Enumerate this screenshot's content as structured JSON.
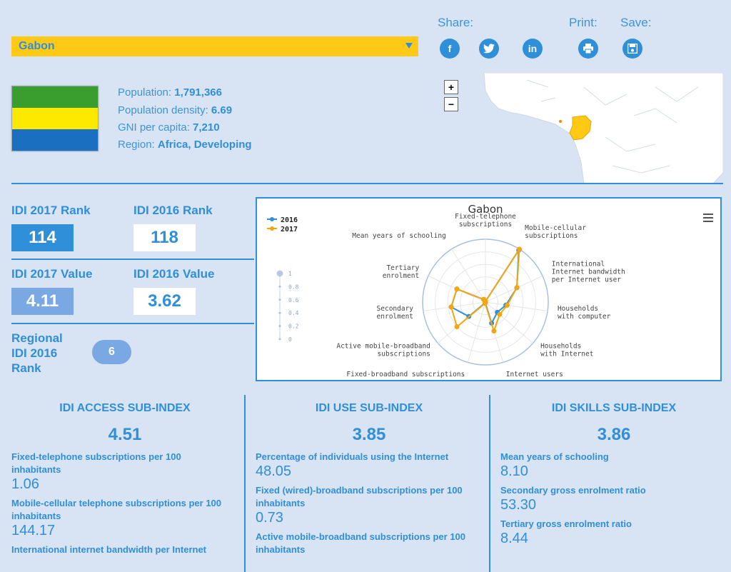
{
  "country_select": {
    "value": "Gabon"
  },
  "actions": {
    "share_label": "Share:",
    "print_label": "Print:",
    "save_label": "Save:"
  },
  "icons": {
    "facebook": "f",
    "twitter": "t",
    "linkedin": "in",
    "print": "print-icon",
    "save": "save-icon"
  },
  "country": {
    "flag_colors": [
      "#3a9e2e",
      "#fde900",
      "#1a6fc0"
    ],
    "stats": [
      {
        "label": "Population: ",
        "value": "1,791,366"
      },
      {
        "label": "Population density: ",
        "value": "6.69"
      },
      {
        "label": "GNI per capita: ",
        "value": "7,210"
      },
      {
        "label": "Region: ",
        "value": "Africa, Developing"
      }
    ]
  },
  "map": {
    "zoom_in": "+",
    "zoom_out": "−",
    "highlight_color": "#ffc915"
  },
  "idi": {
    "rank_2017_label": "IDI 2017 Rank",
    "rank_2017": "114",
    "rank_2016_label": "IDI 2016 Rank",
    "rank_2016": "118",
    "value_2017_label": "IDI 2017 Value",
    "value_2017": "4.11",
    "value_2016_label": "IDI 2016 Value",
    "value_2016": "3.62",
    "regional_label": [
      "Regional",
      "IDI 2016",
      "Rank"
    ],
    "regional_rank": "6"
  },
  "chart_data": {
    "type": "radar",
    "title": "Gabon",
    "axes": [
      "Fixed-telephone subscriptions",
      "Mobile-cellular subscriptions",
      "International Internet bandwidth per Internet user",
      "Households with computer",
      "Households with Internet",
      "Internet users",
      "Fixed-broadband subscriptions",
      "Active mobile-broadband subscriptions",
      "Secondary enrolment",
      "Tertiary enrolment",
      "Mean years of schooling"
    ],
    "axis_labels_lines": [
      [
        "Fixed-telephone",
        "subscriptions"
      ],
      [
        "Mobile-cellular",
        "subscriptions"
      ],
      [
        "International",
        "Internet bandwidth",
        "per Internet user"
      ],
      [
        "Households",
        "with computer"
      ],
      [
        "Households",
        "with Internet"
      ],
      [
        "Internet users"
      ],
      [
        "Fixed-broadband subscriptions"
      ],
      [
        "Active mobile-broadband",
        "subscriptions"
      ],
      [
        "Secondary",
        "enrolment"
      ],
      [
        "Tertiary",
        "enrolment"
      ],
      [
        "Mean years of schooling"
      ]
    ],
    "series": [
      {
        "name": "2016",
        "color": "#2f8fd9",
        "values": [
          0.01,
          0.98,
          0.55,
          0.33,
          0.25,
          0.35,
          0.01,
          0.35,
          0.55,
          0.5,
          0.05
        ]
      },
      {
        "name": "2017",
        "color": "#f2a60f",
        "values": [
          0.01,
          1.0,
          0.55,
          0.35,
          0.3,
          0.48,
          0.02,
          0.6,
          0.55,
          0.5,
          0.05
        ]
      }
    ],
    "radial_ticks": [
      "1",
      "0.8",
      "0.6",
      "0.4",
      "0.2",
      "0"
    ],
    "ylim": [
      0,
      1
    ],
    "legend_position": "top-left",
    "menu_icon": "hamburger-menu-icon"
  },
  "sub_indexes": [
    {
      "title": "IDI ACCESS SUB-INDEX",
      "value": "4.51",
      "indicators": [
        {
          "label_lines": [
            "Fixed-telephone subscriptions per 100",
            "inhabitants"
          ],
          "value": "1.06"
        },
        {
          "label_lines": [
            "Mobile-cellular telephone subscriptions per 100",
            "inhabitants"
          ],
          "value": "144.17"
        },
        {
          "label_lines": [
            "International internet bandwidth per Internet"
          ],
          "value": ""
        }
      ]
    },
    {
      "title": "IDI USE SUB-INDEX",
      "value": "3.85",
      "indicators": [
        {
          "label_lines": [
            "Percentage of individuals using the Internet"
          ],
          "value": "48.05"
        },
        {
          "label_lines": [
            "Fixed (wired)-broadband subscriptions per 100",
            "inhabitants"
          ],
          "value": "0.73"
        },
        {
          "label_lines": [
            "Active mobile-broadband subscriptions per 100",
            "inhabitants"
          ],
          "value": ""
        }
      ]
    },
    {
      "title": "IDI SKILLS SUB-INDEX",
      "value": "3.86",
      "indicators": [
        {
          "label_lines": [
            "Mean years of schooling"
          ],
          "value": "8.10"
        },
        {
          "label_lines": [
            "Secondary gross enrolment ratio"
          ],
          "value": "53.30"
        },
        {
          "label_lines": [
            "Tertiary gross enrolment ratio"
          ],
          "value": "8.44"
        }
      ]
    }
  ]
}
